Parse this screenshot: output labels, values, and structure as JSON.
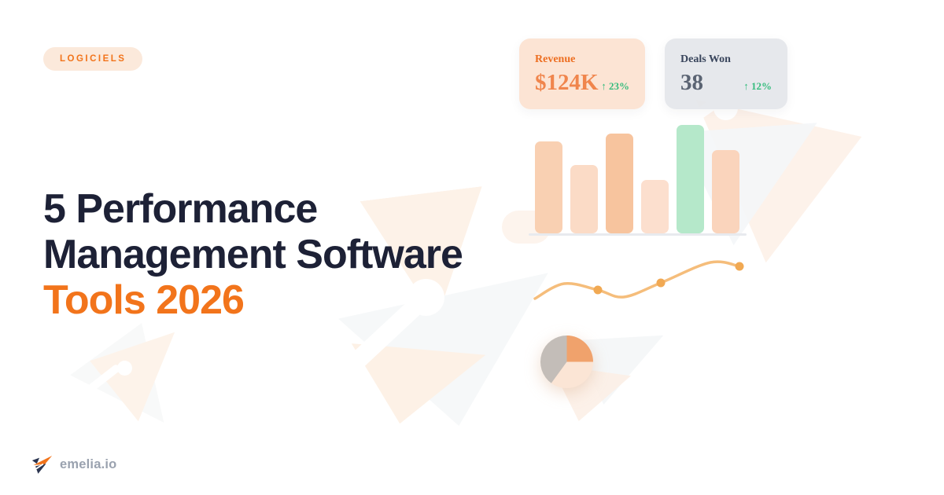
{
  "badge": {
    "label": "LOGICIELS"
  },
  "title": {
    "line1": "5 Performance",
    "line2": "Management Software",
    "line3": "Tools 2026"
  },
  "stat_cards": [
    {
      "label": "Revenue",
      "value": "$124K",
      "delta": "↑ 23%",
      "theme": "orange"
    },
    {
      "label": "Deals Won",
      "value": "38",
      "delta": "↑ 12%",
      "theme": "gray"
    }
  ],
  "brand": {
    "name": "emelia.io"
  },
  "colors": {
    "accent_orange": "#F2741B",
    "navy": "#1D2136",
    "badge_bg": "#FBE9DB",
    "card_revenue_bg": "#FCE4D4",
    "card_deals_bg": "#E3E6EA",
    "delta_green": "#35BC7D",
    "baseline_gray": "#E8EAEE",
    "logo_text_gray": "#9AA2AF"
  },
  "chart_data": [
    {
      "type": "bar",
      "name": "mini-bar-chart",
      "title": "",
      "categories": [
        "1",
        "2",
        "3",
        "4",
        "5",
        "6"
      ],
      "values": [
        117,
        87,
        127,
        68,
        138,
        106
      ],
      "value_unit": "relative height px (decorative chart, no axis labels)",
      "colors": [
        "#F9D0B2",
        "#FBDBC6",
        "#F7C49E",
        "#FCDFCE",
        "#B5E8CA",
        "#FAD4BC"
      ],
      "highlight_index": 4,
      "baseline_color": "#E8EAEE",
      "grid": false,
      "legend": false
    },
    {
      "type": "line",
      "name": "trend-sparkline",
      "points": [
        [
          8,
          70
        ],
        [
          45,
          51
        ],
        [
          88,
          59
        ],
        [
          121,
          68
        ],
        [
          168,
          50
        ],
        [
          231,
          24
        ],
        [
          268,
          29
        ]
      ],
      "marker_points": [
        [
          88,
          59
        ],
        [
          168,
          50
        ],
        [
          268,
          29
        ]
      ],
      "color": "#F5BD7B",
      "marker_color": "#F1A953",
      "note": "decorative smooth trend curve, no axes or labels"
    },
    {
      "type": "pie",
      "name": "mini-pie",
      "start_angle_deg": -90,
      "slices": [
        {
          "name": "orange",
          "pct": 25,
          "color": "#F0A26C"
        },
        {
          "name": "peach",
          "pct": 35,
          "color": "#FBE5D5"
        },
        {
          "name": "gray",
          "pct": 40,
          "color": "#C3BDB8"
        }
      ],
      "note": "decorative, unlabeled"
    }
  ]
}
